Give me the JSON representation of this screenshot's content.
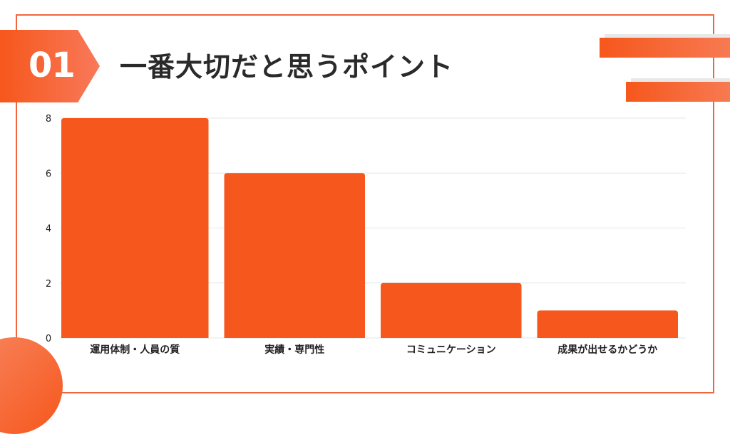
{
  "header": {
    "number": "01",
    "title": "一番大切だと思うポイント"
  },
  "colors": {
    "accent": "#f6571c",
    "frame": "#f0673c",
    "grid": "#e6e6e6",
    "text": "#2a2a2a"
  },
  "chart_data": {
    "type": "bar",
    "categories": [
      "運用体制・人員の質",
      "実績・専門性",
      "コミュニケーション",
      "成果が出せるかどうか"
    ],
    "values": [
      8,
      6,
      2,
      1
    ],
    "yticks": [
      "0",
      "2",
      "4",
      "6",
      "8"
    ],
    "ylim": [
      0,
      8
    ],
    "grid": true,
    "color": "#f6571c"
  }
}
